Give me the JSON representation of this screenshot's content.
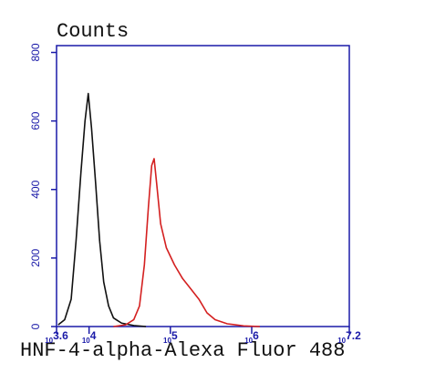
{
  "chart_data": {
    "type": "line",
    "title": "Counts",
    "x_label": "HNF-4-alpha-Alexa Fluor 488",
    "xscale": "log",
    "axis_color": "#1a1aa8",
    "xlim": [
      3981,
      15848932
    ],
    "ylim": [
      0,
      820
    ],
    "xticks": [
      {
        "value": 3981,
        "label": "10^3.6"
      },
      {
        "value": 10000,
        "label": "10^4"
      },
      {
        "value": 100000,
        "label": "10^5"
      },
      {
        "value": 1000000,
        "label": "10^6"
      },
      {
        "value": 15848932,
        "label": "10^7.2"
      }
    ],
    "yticks": [
      0,
      200,
      400,
      600,
      800
    ],
    "series": [
      {
        "color": "#111111",
        "x": [
          4169,
          5012,
          6026,
          6918,
          7943,
          8913,
          9772,
          10715,
          12023,
          13490,
          15136,
          17378,
          19953,
          25119,
          35481,
          50119
        ],
        "values": [
          5,
          20,
          80,
          250,
          450,
          600,
          680,
          580,
          420,
          250,
          130,
          60,
          25,
          10,
          3,
          0
        ]
      },
      {
        "color": "#d42020",
        "x": [
          19953,
          28184,
          35481,
          41687,
          47863,
          53703,
          58884,
          63096,
          67608,
          75858,
          89125,
          112202,
          141254,
          177828,
          223872,
          281838,
          354813,
          501187,
          794328,
          1258925
        ],
        "values": [
          0,
          5,
          20,
          60,
          180,
          350,
          470,
          490,
          420,
          300,
          230,
          180,
          140,
          110,
          80,
          40,
          20,
          8,
          2,
          0
        ]
      }
    ]
  }
}
